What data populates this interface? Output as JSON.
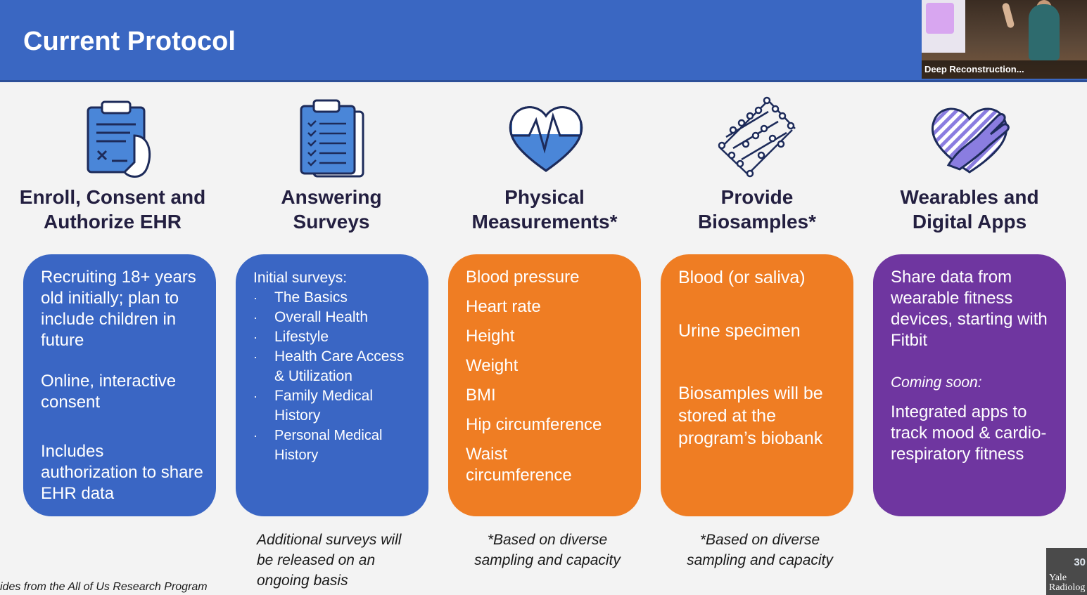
{
  "header": {
    "title": "Current Protocol",
    "video_caption": "Deep Reconstruction..."
  },
  "columns": [
    {
      "heading_line1": "Enroll, Consent and",
      "heading_line2": "Authorize EHR",
      "icon": "clipboard-hand-icon",
      "color": "#3a66c4",
      "card": {
        "p1": "Recruiting 18+ years old initially; plan to include children in future",
        "p2": "Online, interactive consent",
        "p3": "Includes authorization to share EHR data"
      }
    },
    {
      "heading_line1": "Answering",
      "heading_line2": "Surveys",
      "icon": "checklist-clipboard-icon",
      "color": "#3a66c4",
      "card": {
        "intro": "Initial surveys:",
        "items": [
          "The Basics",
          "Overall Health",
          "Lifestyle",
          "Health Care Access & Utilization",
          "Family Medical History",
          "Personal Medical History"
        ]
      },
      "note": "Additional surveys will be released on an ongoing basis"
    },
    {
      "heading_line1": "Physical",
      "heading_line2": "Measurements*",
      "icon": "heart-pulse-icon",
      "color": "#ef7d23",
      "card": {
        "items": [
          "Blood pressure",
          "Heart rate",
          "Height",
          "Weight",
          "BMI",
          "Hip circumference",
          "Waist circumference"
        ]
      },
      "note": "*Based on diverse sampling and capacity"
    },
    {
      "heading_line1": "Provide",
      "heading_line2": "Biosamples*",
      "icon": "dna-icon",
      "color": "#ef7d23",
      "card": {
        "p1": "Blood (or saliva)",
        "p2": "Urine specimen",
        "p3": "Biosamples will be stored at the program’s biobank"
      },
      "note": "*Based on diverse sampling and capacity"
    },
    {
      "heading_line1": "Wearables and",
      "heading_line2": "Digital Apps",
      "icon": "hand-heart-icon",
      "color": "#6f36a0",
      "card": {
        "p1": "Share data from wearable fitness devices, starting with Fitbit",
        "coming": "Coming soon:",
        "p2": "Integrated apps to track mood & cardio-respiratory fitness"
      }
    }
  ],
  "footer": {
    "source": "ides from the All of Us Research Program",
    "logo_number": "30",
    "logo_text_line1": "Yale",
    "logo_text_line2": "Radiolog"
  }
}
